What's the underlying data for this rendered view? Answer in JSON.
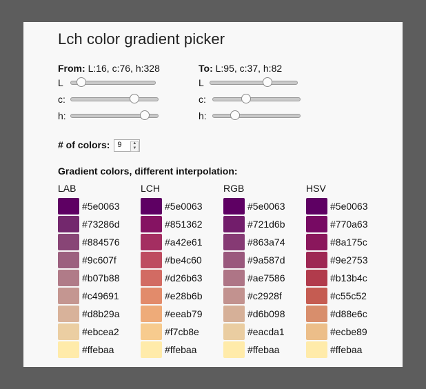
{
  "title": "Lch color gradient picker",
  "from": {
    "label": "From:",
    "value": "L:16, c:76, h:328",
    "sliders": [
      {
        "label": "L",
        "fraction": 0.12
      },
      {
        "label": "c:",
        "fraction": 0.73
      },
      {
        "label": "h:",
        "fraction": 0.85
      }
    ]
  },
  "to": {
    "label": "To:",
    "value": "L:95, c:37, h:82",
    "sliders": [
      {
        "label": "L",
        "fraction": 0.66
      },
      {
        "label": "c:",
        "fraction": 0.38
      },
      {
        "label": "h:",
        "fraction": 0.25
      }
    ]
  },
  "count": {
    "label": "# of colors:",
    "value": "9"
  },
  "gradient_heading": "Gradient colors, different interpolation:",
  "columns": [
    {
      "name": "LAB",
      "colors": [
        "#5e0063",
        "#73286d",
        "#884576",
        "#9c607f",
        "#b07b88",
        "#c49691",
        "#d8b29a",
        "#ebcea2",
        "#ffebaa"
      ]
    },
    {
      "name": "LCH",
      "colors": [
        "#5e0063",
        "#851362",
        "#a42e61",
        "#be4c60",
        "#d26b63",
        "#e28b6b",
        "#eeab79",
        "#f7cb8e",
        "#ffebaa"
      ]
    },
    {
      "name": "RGB",
      "colors": [
        "#5e0063",
        "#721d6b",
        "#863a74",
        "#9a587d",
        "#ae7586",
        "#c2928f",
        "#d6b098",
        "#eacda1",
        "#ffebaa"
      ]
    },
    {
      "name": "HSV",
      "colors": [
        "#5e0063",
        "#770a63",
        "#8a175c",
        "#9e2753",
        "#b13b4c",
        "#c55c52",
        "#d88e6c",
        "#ecbe89",
        "#ffebaa"
      ]
    }
  ]
}
